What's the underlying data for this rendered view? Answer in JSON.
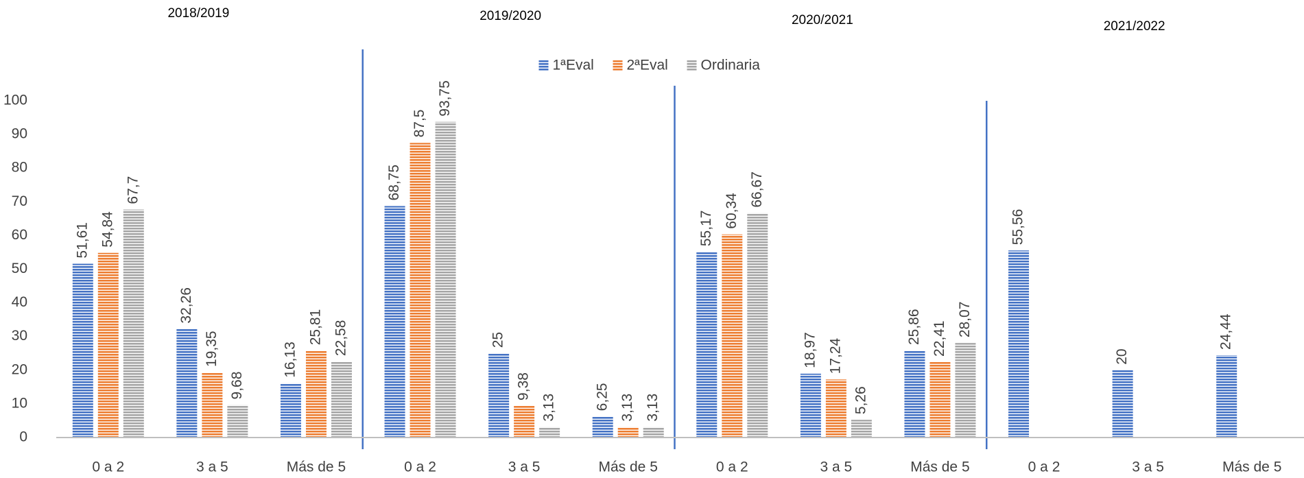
{
  "chart_data": {
    "type": "bar",
    "groups": [
      "2018/2019",
      "2019/2020",
      "2020/2021",
      "2021/2022"
    ],
    "categories": [
      "0 a 2",
      "3 a 5",
      "Más de 5",
      "0 a 2",
      "3 a 5",
      "Más de 5",
      "0 a 2",
      "3 a 5",
      "Más de 5",
      "0 a 2",
      "3 a 5",
      "Más de 5"
    ],
    "series": [
      {
        "name": "1ªEval",
        "color": "#4472c4",
        "values": [
          51.61,
          32.26,
          16.13,
          68.75,
          25,
          6.25,
          55.17,
          18.97,
          25.86,
          55.56,
          20,
          24.44
        ],
        "value_labels": [
          "51,61",
          "32,26",
          "16,13",
          "68,75",
          "25",
          "6,25",
          "55,17",
          "18,97",
          "25,86",
          "55,56",
          "20",
          "24,44"
        ]
      },
      {
        "name": "2ªEval",
        "color": "#ed7d31",
        "values": [
          54.84,
          19.35,
          25.81,
          87.5,
          9.38,
          3.13,
          60.34,
          17.24,
          22.41,
          null,
          null,
          null
        ],
        "value_labels": [
          "54,84",
          "19,35",
          "25,81",
          "87,5",
          "9,38",
          "3,13",
          "60,34",
          "17,24",
          "22,41",
          null,
          null,
          null
        ]
      },
      {
        "name": "Ordinaria",
        "color": "#a5a5a5",
        "values": [
          67.7,
          9.68,
          22.58,
          93.75,
          3.13,
          3.13,
          66.67,
          5.26,
          28.07,
          null,
          null,
          null
        ],
        "value_labels": [
          "67,7",
          "9,68",
          "22,58",
          "93,75",
          "3,13",
          "3,13",
          "66,67",
          "5,26",
          "28,07",
          null,
          null,
          null
        ]
      }
    ],
    "ylim": [
      0,
      100
    ],
    "yticks": [
      0,
      10,
      20,
      30,
      40,
      50,
      60,
      70,
      80,
      90,
      100
    ],
    "grid": false,
    "legend": "top"
  }
}
